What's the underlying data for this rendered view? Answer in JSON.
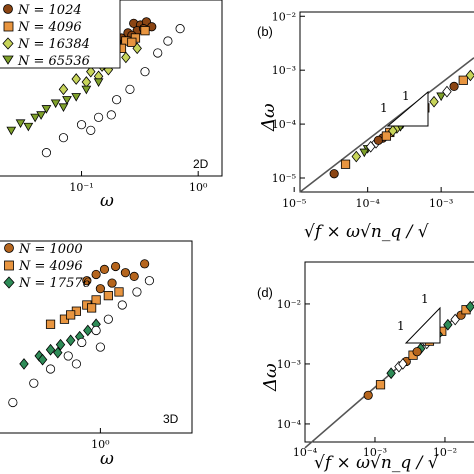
{
  "chart_data": [
    {
      "panel": "a",
      "type": "scatter",
      "xlabel": "ω",
      "ylabel": "",
      "xscale": "log",
      "yscale": "log",
      "xlim": [
        0.02,
        1.6
      ],
      "ylim": [
        2e-05,
        0.02
      ],
      "xticks": [
        {
          "v": 0.1,
          "label": "10⁻¹"
        },
        {
          "v": 1,
          "label": "10⁰"
        }
      ],
      "tag": "2D",
      "legend_position": "top-left",
      "legend_labels": [
        "N = 1024",
        "N = 4096",
        "N = 16384",
        "N = 65536"
      ],
      "series": [
        {
          "name": "N = 1024",
          "marker": "circle",
          "color": "#8B4513",
          "x": [
            0.28,
            0.32,
            0.36,
            0.3,
            0.25,
            0.34,
            0.4,
            0.22,
            0.27
          ],
          "y": [
            0.008,
            0.0075,
            0.0085,
            0.006,
            0.0055,
            0.0065,
            0.007,
            0.0045,
            0.005
          ]
        },
        {
          "name": "N = 4096",
          "marker": "square",
          "color": "#E89540",
          "x": [
            0.1,
            0.13,
            0.16,
            0.2,
            0.24,
            0.29,
            0.35,
            0.18,
            0.22,
            0.27
          ],
          "y": [
            0.0018,
            0.002,
            0.0025,
            0.0035,
            0.004,
            0.0045,
            0.006,
            0.0022,
            0.003,
            0.0038
          ]
        },
        {
          "name": "N = 16384",
          "marker": "diamond",
          "color": "#C7D45A",
          "x": [
            0.07,
            0.09,
            0.12,
            0.15,
            0.19,
            0.24,
            0.3,
            0.11,
            0.14,
            0.17
          ],
          "y": [
            0.0006,
            0.0009,
            0.0012,
            0.0015,
            0.0018,
            0.0021,
            0.003,
            0.0008,
            0.001,
            0.0013
          ]
        },
        {
          "name": "N = 65536",
          "marker": "triangle-down",
          "color": "#7FA12B",
          "x": [
            0.025,
            0.03,
            0.04,
            0.05,
            0.06,
            0.075,
            0.09,
            0.11,
            0.14,
            0.035,
            0.045,
            0.07
          ],
          "y": [
            0.00012,
            0.00016,
            0.0002,
            0.00028,
            0.00035,
            0.0004,
            0.00045,
            0.0006,
            0.0008,
            0.00014,
            0.00022,
            0.0003
          ]
        },
        {
          "name": "",
          "marker": "open",
          "color": "#ffffff",
          "x": [
            0.05,
            0.07,
            0.1,
            0.14,
            0.2,
            0.26,
            0.35,
            0.45,
            0.55,
            0.7,
            0.12,
            0.18
          ],
          "y": [
            5e-05,
            9e-05,
            0.00015,
            0.0002,
            0.0004,
            0.0006,
            0.0012,
            0.0025,
            0.004,
            0.0065,
            0.00012,
            0.00022
          ]
        }
      ]
    },
    {
      "panel": "b",
      "type": "scatter",
      "label": "(b)",
      "xlabel": "√f × ω√n_q / √",
      "ylabel": "Δω",
      "xscale": "log",
      "yscale": "log",
      "xlim": [
        1.2e-05,
        0.0028
      ],
      "ylim": [
        5.5e-06,
        0.012
      ],
      "xticks": [
        {
          "v": 1e-05,
          "label": "10⁻⁵"
        },
        {
          "v": 0.0001,
          "label": "10⁻⁴"
        },
        {
          "v": 0.001,
          "label": "10⁻³"
        }
      ],
      "yticks": [
        {
          "v": 1e-05,
          "label": "10⁻⁵"
        },
        {
          "v": 0.0001,
          "label": "10⁻⁴"
        },
        {
          "v": 0.001,
          "label": "10⁻³"
        },
        {
          "v": 0.01,
          "label": "10⁻²"
        }
      ],
      "slope_label": "1",
      "fit_line": {
        "x": [
          1.2e-05,
          0.0028
        ],
        "y": [
          5.5e-06,
          0.0017
        ]
      },
      "points": {
        "x": [
          3.5e-05,
          5e-05,
          7e-05,
          0.0001,
          0.00013,
          0.00016,
          0.0002,
          0.00025,
          0.0003,
          0.0004,
          0.0005,
          0.0006,
          0.0008,
          0.001,
          0.0012,
          0.0015,
          0.002,
          0.0025,
          9e-05,
          0.00011,
          0.00014,
          0.00018,
          0.00022,
          0.00028
        ],
        "y": [
          1.2e-05,
          1.8e-05,
          2.5e-05,
          3.5e-05,
          4.5e-05,
          5.5e-05,
          7e-05,
          8.5e-05,
          0.0001,
          0.00013,
          0.00017,
          0.0002,
          0.00026,
          0.00033,
          0.0004,
          0.0005,
          0.00065,
          0.0008,
          3e-05,
          3.8e-05,
          5e-05,
          6e-05,
          7.5e-05,
          9e-05
        ]
      }
    },
    {
      "panel": "c",
      "type": "scatter",
      "xlabel": "ω",
      "ylabel": "",
      "xscale": "log",
      "yscale": "log",
      "xlim": [
        0.3,
        3
      ],
      "ylim": [
        5e-05,
        0.05
      ],
      "xticks": [
        {
          "v": 1,
          "label": "10⁰"
        }
      ],
      "tag": "3D",
      "legend_position": "top-left",
      "legend_labels": [
        "N = 1000",
        "N = 4096",
        "N = 17576"
      ],
      "series": [
        {
          "name": "N = 1000",
          "marker": "circle",
          "color": "#B5651D",
          "x": [
            0.85,
            0.95,
            1.05,
            1.2,
            1.35,
            1.5,
            1.7,
            1.0,
            1.15
          ],
          "y": [
            0.012,
            0.015,
            0.018,
            0.02,
            0.016,
            0.014,
            0.022,
            0.009,
            0.011
          ]
        },
        {
          "name": "N = 4096",
          "marker": "square",
          "color": "#E89540",
          "x": [
            0.55,
            0.65,
            0.75,
            0.85,
            0.95,
            1.1,
            1.25,
            0.7,
            0.9
          ],
          "y": [
            0.0025,
            0.003,
            0.004,
            0.005,
            0.006,
            0.007,
            0.008,
            0.0035,
            0.0045
          ]
        },
        {
          "name": "N = 17576",
          "marker": "diamond",
          "color": "#2E8B57",
          "x": [
            0.4,
            0.48,
            0.55,
            0.62,
            0.7,
            0.78,
            0.86,
            0.95,
            0.5,
            0.6
          ],
          "y": [
            0.0006,
            0.0008,
            0.001,
            0.0012,
            0.0014,
            0.0016,
            0.002,
            0.0025,
            0.0007,
            0.0009
          ]
        },
        {
          "name": "",
          "marker": "open",
          "color": "#ffffff",
          "x": [
            0.35,
            0.45,
            0.55,
            0.68,
            0.8,
            0.95,
            1.1,
            1.3,
            1.55,
            1.8,
            0.75,
            1.0
          ],
          "y": [
            0.00015,
            0.0003,
            0.0005,
            0.0008,
            0.0013,
            0.002,
            0.003,
            0.005,
            0.008,
            0.012,
            0.0006,
            0.0011
          ]
        }
      ]
    },
    {
      "panel": "d",
      "type": "scatter",
      "label": "(d)",
      "xlabel": "√f × ω√n_q / √",
      "ylabel": "Δω",
      "xscale": "log",
      "yscale": "log",
      "xlim": [
        0.0001,
        0.026
      ],
      "ylim": [
        5e-05,
        0.05
      ],
      "xticks": [
        {
          "v": 0.0001,
          "label": "10⁻⁴"
        },
        {
          "v": 0.001,
          "label": "10⁻³"
        },
        {
          "v": 0.01,
          "label": "10⁻²"
        }
      ],
      "yticks": [
        {
          "v": 0.0001,
          "label": "10⁻⁴"
        },
        {
          "v": 0.001,
          "label": "10⁻³"
        },
        {
          "v": 0.01,
          "label": "10⁻²"
        }
      ],
      "slope_label": "1",
      "fit_line": {
        "x": [
          0.0001,
          0.026
        ],
        "y": [
          4e-05,
          0.011
        ]
      },
      "points": {
        "x": [
          0.0008,
          0.0012,
          0.0017,
          0.0022,
          0.0028,
          0.0035,
          0.0045,
          0.0055,
          0.007,
          0.009,
          0.011,
          0.014,
          0.017,
          0.02,
          0.023,
          0.0025,
          0.004,
          0.006,
          0.008
        ],
        "y": [
          0.0003,
          0.00045,
          0.0007,
          0.0009,
          0.0011,
          0.0014,
          0.0018,
          0.0022,
          0.0028,
          0.0035,
          0.0045,
          0.0055,
          0.0065,
          0.008,
          0.009,
          0.001,
          0.0016,
          0.0024,
          0.0031
        ]
      }
    }
  ]
}
